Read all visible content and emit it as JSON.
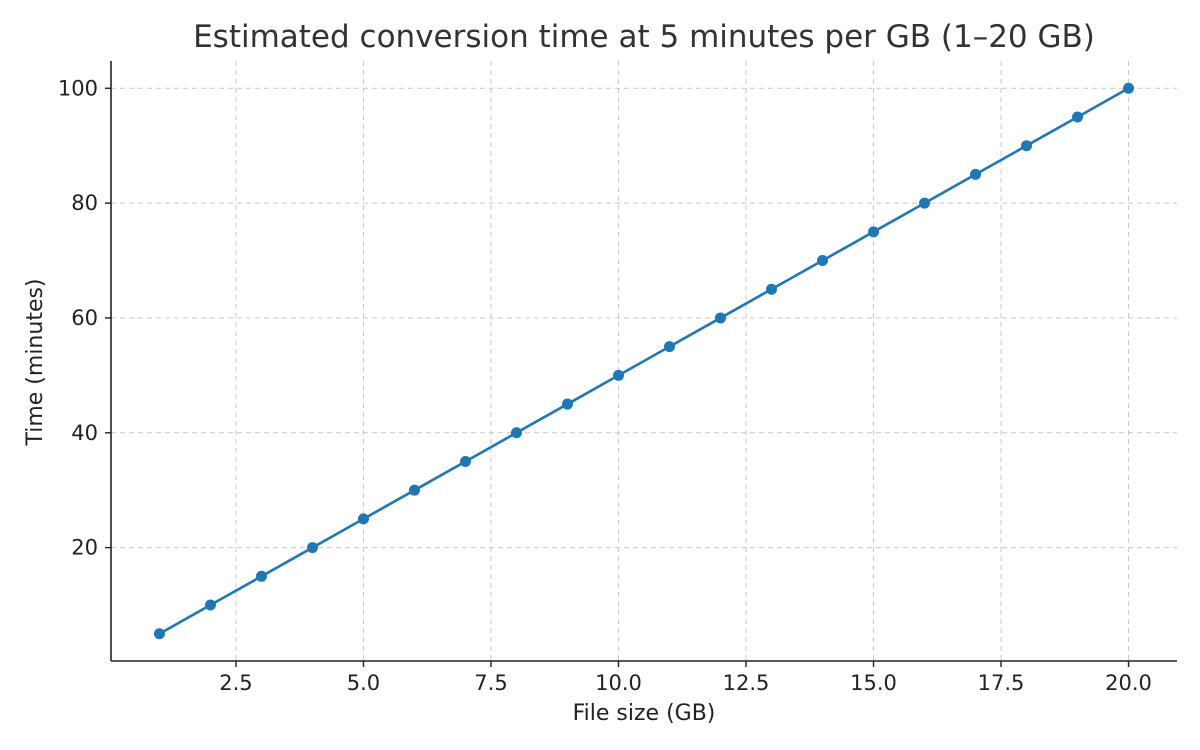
{
  "chart_data": {
    "type": "line",
    "title": "Estimated conversion time at 5 minutes per GB (1–20 GB)",
    "xlabel": "File size (GB)",
    "ylabel": "Time (minutes)",
    "xlim": [
      0.05,
      20.95
    ],
    "ylim": [
      0.25,
      104.75
    ],
    "x_ticks": [
      2.5,
      5.0,
      7.5,
      10.0,
      12.5,
      15.0,
      17.5,
      20.0
    ],
    "x_tick_labels": [
      "2.5",
      "5.0",
      "7.5",
      "10.0",
      "12.5",
      "15.0",
      "17.5",
      "20.0"
    ],
    "y_ticks": [
      20,
      40,
      60,
      80,
      100
    ],
    "y_tick_labels": [
      "20",
      "40",
      "60",
      "80",
      "100"
    ],
    "grid": true,
    "series": [
      {
        "color": "#1f77b4",
        "marker": "circle",
        "x": [
          1,
          2,
          3,
          4,
          5,
          6,
          7,
          8,
          9,
          10,
          11,
          12,
          13,
          14,
          15,
          16,
          17,
          18,
          19,
          20
        ],
        "y": [
          5,
          10,
          15,
          20,
          25,
          30,
          35,
          40,
          45,
          50,
          55,
          60,
          65,
          70,
          75,
          80,
          85,
          90,
          95,
          100
        ]
      }
    ]
  }
}
